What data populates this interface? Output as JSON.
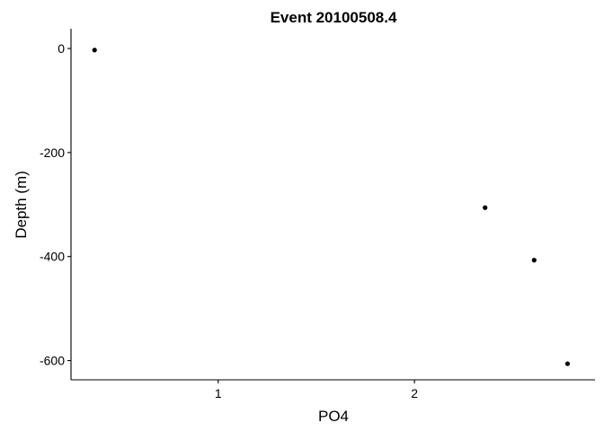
{
  "chart_data": {
    "type": "scatter",
    "title": "Event 20100508.4",
    "xlabel": "PO4",
    "ylabel": "Depth (m)",
    "xlim": [
      0.25,
      2.92
    ],
    "ylim": [
      -637,
      38
    ],
    "x_ticks": [
      1,
      2
    ],
    "y_ticks": [
      0,
      -200,
      -400,
      -600
    ],
    "x_tick_labels": [
      "1",
      "2"
    ],
    "y_tick_labels": [
      "0",
      "-200",
      "-400",
      "-600"
    ],
    "grid": false,
    "legend": "none",
    "series": [
      {
        "x": [
          0.37,
          2.36,
          2.61,
          2.78
        ],
        "y": [
          -3,
          -306,
          -407,
          -606
        ]
      }
    ],
    "point_color": "#000000"
  }
}
